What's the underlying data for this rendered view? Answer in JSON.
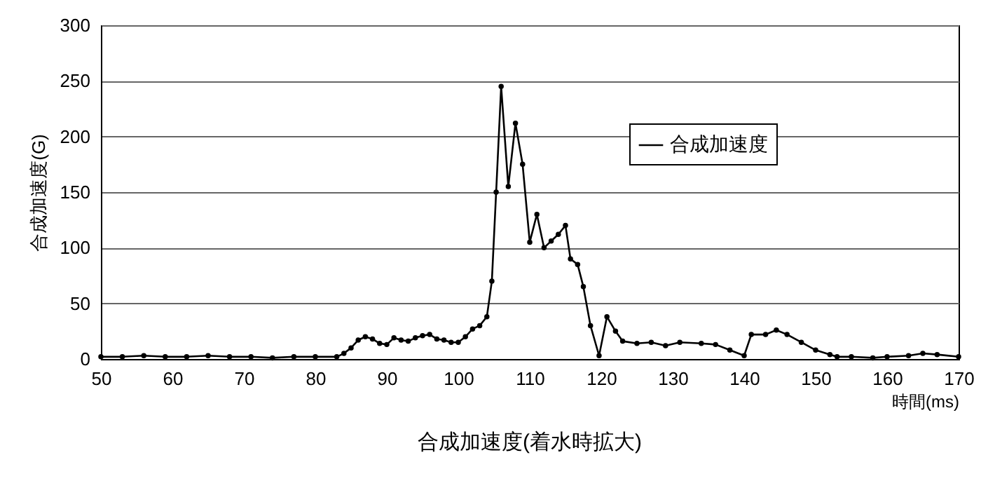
{
  "chart_data": {
    "type": "line",
    "title": "合成加速度(着水時拡大)",
    "xlabel": "時間(ms)",
    "ylabel": "合成加速度(G)",
    "x": [
      50,
      53,
      56,
      59,
      62,
      65,
      68,
      71,
      74,
      77,
      80,
      83,
      84,
      85,
      86,
      87,
      88,
      89,
      90,
      91,
      92,
      93,
      94,
      95,
      96,
      97,
      98,
      99,
      100,
      101,
      102,
      103,
      104,
      104.7,
      105.3,
      106,
      107,
      108,
      109,
      110,
      111,
      112,
      113,
      114,
      115,
      115.7,
      116.7,
      117.5,
      118.5,
      119.7,
      120.8,
      122,
      123,
      125,
      127,
      129,
      131,
      134,
      136,
      138,
      140,
      141,
      143,
      144.5,
      146,
      148,
      150,
      152,
      153,
      155,
      158,
      160,
      163,
      165,
      167,
      170
    ],
    "series": [
      {
        "name": "合成加速度",
        "color": "#000000",
        "values": [
          2,
          2,
          3,
          2,
          2,
          3,
          2,
          2,
          1,
          2,
          2,
          2,
          5,
          10,
          17,
          20,
          18,
          14,
          13,
          19,
          17,
          16,
          19,
          21,
          22,
          18,
          17,
          15,
          15,
          20,
          27,
          30,
          38,
          70,
          150,
          245,
          155,
          212,
          175,
          105,
          130,
          100,
          106,
          112,
          120,
          90,
          85,
          65,
          30,
          3,
          38,
          25,
          16,
          14,
          15,
          12,
          15,
          14,
          13,
          8,
          3,
          22,
          22,
          26,
          22,
          15,
          8,
          4,
          2,
          2,
          1,
          2,
          3,
          5,
          4,
          2
        ]
      }
    ],
    "xlim": [
      50,
      170
    ],
    "xticks": [
      50,
      60,
      70,
      80,
      90,
      100,
      110,
      120,
      130,
      140,
      150,
      160,
      170
    ],
    "ylim": [
      0,
      300
    ],
    "yticks": [
      0,
      50,
      100,
      150,
      200,
      250,
      300
    ],
    "grid": "y",
    "legend": "top right",
    "marker": "circle",
    "line_style": "solid"
  }
}
